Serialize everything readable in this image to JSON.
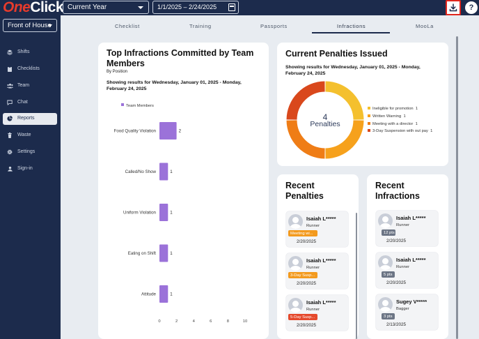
{
  "app": {
    "logo_one": "One",
    "logo_click": "Click"
  },
  "header": {
    "period": "Current Year",
    "date_range": "1/1/2025  – 2/24/2025",
    "help": "?"
  },
  "sidebar": {
    "location": "Front of House",
    "items": [
      {
        "label": "Shifts",
        "icon": "layers-icon"
      },
      {
        "label": "Checklists",
        "icon": "clipboard-icon"
      },
      {
        "label": "Team",
        "icon": "team-icon"
      },
      {
        "label": "Chat",
        "icon": "chat-icon"
      },
      {
        "label": "Reports",
        "icon": "pie-chart-icon",
        "active": true
      },
      {
        "label": "Waste",
        "icon": "trash-icon"
      },
      {
        "label": "Settings",
        "icon": "gear-icon"
      },
      {
        "label": "Sign-in",
        "icon": "sign-in-icon"
      }
    ]
  },
  "tabs": [
    "Checklist",
    "Training",
    "Passports",
    "Infractions",
    "MooLa"
  ],
  "active_tab": "Infractions",
  "infractions_chart": {
    "title": "Top Infractions Committed by Team Members",
    "subtitle": "By Position",
    "results_text": "Showing results for Wednesday, January 01, 2025 - Monday, February 24, 2025"
  },
  "chart_data": {
    "type": "bar",
    "orientation": "horizontal",
    "series": [
      {
        "name": "Team Members",
        "values": [
          2,
          1,
          1,
          1,
          1
        ]
      }
    ],
    "categories": [
      "Food Quality Violation",
      "Called/No Show",
      "Uniform Violation",
      "Eating on Shift",
      "Attitude"
    ],
    "x_ticks": [
      "0",
      "2",
      "4",
      "6",
      "8",
      "10"
    ],
    "xlim": [
      0,
      10
    ],
    "color": "#9b72d9",
    "legend_position": "top",
    "grid": false
  },
  "penalties": {
    "title": "Current Penalties Issued",
    "results_text": "Showing results for Wednesday, January 01, 2025 - Monday, February 24, 2025",
    "total": "4",
    "total_label": "Penalties",
    "legend": [
      {
        "label": "Ineligible for promotion",
        "count": "1",
        "value": 1,
        "color": "#f4c02e"
      },
      {
        "label": "Written Warning",
        "count": "1",
        "value": 1,
        "color": "#f6a11c"
      },
      {
        "label": "Meeting with a director",
        "count": "1",
        "value": 1,
        "color": "#ef7d16"
      },
      {
        "label": "3-Day Suspension with out pay",
        "count": "1",
        "value": 1,
        "color": "#d9481c"
      }
    ]
  },
  "recent_penalties": {
    "title_line1": "Recent",
    "title_line2": "Penalties",
    "items": [
      {
        "name": "Isaiah L*****",
        "role": "Runner",
        "badge": "Meeting wi...",
        "badge_color": "#f39a1e",
        "date": "2/20/2025"
      },
      {
        "name": "Isaiah L*****",
        "role": "Runner",
        "badge": "3-Day Susp...",
        "badge_color": "#f39a1e",
        "date": "2/20/2025"
      },
      {
        "name": "Isaiah L*****",
        "role": "Runner",
        "badge": "5-Day Susp...",
        "badge_color": "#e5492c",
        "date": "2/20/2025"
      }
    ]
  },
  "recent_infractions": {
    "title_line1": "Recent",
    "title_line2": "Infractions",
    "items": [
      {
        "name": "Isaiah L*****",
        "role": "Runner",
        "badge": "12 pts",
        "date": "2/20/2025"
      },
      {
        "name": "Isaiah L*****",
        "role": "Runner",
        "badge": "5 pts",
        "date": "2/20/2025"
      },
      {
        "name": "Sugey V*****",
        "role": "Bagger",
        "badge": "3 pts",
        "date": "2/13/2025"
      }
    ]
  }
}
